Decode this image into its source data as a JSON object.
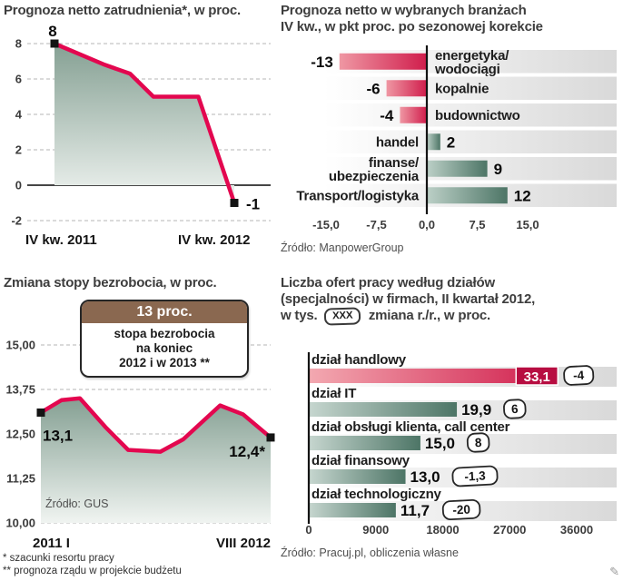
{
  "colors": {
    "line_pink": "#e3074f",
    "area_top": "#85a093",
    "area_bottom": "#f0f4f1",
    "bar_teal": "#4d7566",
    "bar_red": "#d01d4c",
    "value_box": "#b70d41",
    "callout_brown": "#8a6850"
  },
  "footnotes": [
    "* szacunki resortu pracy",
    "** prognoza rządu w projekcie budżetu"
  ],
  "chart_data": [
    {
      "type": "area",
      "title": "Prognoza netto zatrudnienia*, w proc.",
      "points": [
        [
          0,
          8
        ],
        [
          0.28,
          6.8
        ],
        [
          0.42,
          6.3
        ],
        [
          0.55,
          5
        ],
        [
          0.8,
          5
        ],
        [
          1,
          -1
        ]
      ],
      "ylim": [
        -2,
        8
      ],
      "yticks": [
        8,
        6,
        4,
        2,
        0,
        -2
      ],
      "ytick_labels": [
        "8",
        "6",
        "4",
        "2",
        "0",
        "-2"
      ],
      "x_labels": [
        "IV kw. 2011",
        "IV kw. 2012"
      ],
      "point_labels": {
        "start": "8",
        "end": "-1"
      }
    },
    {
      "type": "bar-horizontal-diverging",
      "title_lines": [
        "Prognoza netto w wybranych branżach",
        "IV kw., w pkt proc. po sezonowej korekcie"
      ],
      "rows": [
        {
          "label_lines": [
            "energetyka/",
            "wodociągi"
          ],
          "value": -13,
          "value_label": "-13"
        },
        {
          "label_lines": [
            "kopalnie"
          ],
          "value": -6,
          "value_label": "-6"
        },
        {
          "label_lines": [
            "budownictwo"
          ],
          "value": -4,
          "value_label": "-4"
        },
        {
          "label_lines": [
            "handel"
          ],
          "value": 2,
          "value_label": "2"
        },
        {
          "label_lines": [
            "finanse/",
            "ubezpieczenia"
          ],
          "value": 9,
          "value_label": "9"
        },
        {
          "label_lines": [
            "Transport/logistyka"
          ],
          "value": 12,
          "value_label": "12"
        }
      ],
      "xlim": [
        -15,
        15
      ],
      "xticks": [
        -15,
        -7.5,
        0,
        7.5,
        15
      ],
      "xtick_labels": [
        "-15,0",
        "-7,5",
        "0,0",
        "7,5",
        "15,0"
      ],
      "source": "Źródło: ManpowerGroup"
    },
    {
      "type": "area",
      "title": "Zmiana stopy bezrobocia, w proc.",
      "callout": {
        "header": "13 proc.",
        "body_lines": [
          "stopa bezrobocia",
          "na koniec",
          "2012 i w 2013 **"
        ]
      },
      "points": [
        [
          0,
          13.1
        ],
        [
          0.09,
          13.45
        ],
        [
          0.17,
          13.5
        ],
        [
          0.28,
          12.7
        ],
        [
          0.38,
          12.05
        ],
        [
          0.52,
          12.0
        ],
        [
          0.62,
          12.35
        ],
        [
          0.78,
          13.3
        ],
        [
          0.88,
          13.05
        ],
        [
          1,
          12.4
        ]
      ],
      "ylim": [
        10,
        15
      ],
      "yticks": [
        15,
        13.75,
        12.5,
        11.25,
        10
      ],
      "ytick_labels": [
        "15,00",
        "13,75",
        "12,50",
        "11,25",
        "10,00"
      ],
      "x_labels": [
        "2011 I",
        "VIII 2012"
      ],
      "point_labels": {
        "start": "13,1",
        "end": "12,4*"
      },
      "source": "Źródło: GUS"
    },
    {
      "type": "bar-horizontal",
      "title_lines": [
        "Liczba ofert pracy według działów",
        "(specjalności) w firmach, II kwartał 2012,"
      ],
      "title_tail": {
        "pre": "w tys.",
        "token": "XXX",
        "post": "zmiana r./r., w proc."
      },
      "rows": [
        {
          "label": "dział handlowy",
          "value": 33.1,
          "value_label": "33,1",
          "change": "-4",
          "highlight": true
        },
        {
          "label": "dział IT",
          "value": 19.9,
          "value_label": "19,9",
          "change": "6",
          "highlight": false
        },
        {
          "label": "dział obsługi klienta, call center",
          "value": 15.0,
          "value_label": "15,0",
          "change": "8",
          "highlight": false
        },
        {
          "label": "dział finansowy",
          "value": 13.0,
          "value_label": "13,0",
          "change": "-1,3",
          "highlight": false
        },
        {
          "label": "dział technologiczny",
          "value": 11.7,
          "value_label": "11,7",
          "change": "-20",
          "highlight": false
        }
      ],
      "xlim": [
        0,
        36000
      ],
      "value_scale": 1000,
      "xticks": [
        0,
        9000,
        18000,
        27000,
        36000
      ],
      "xtick_labels": [
        "0",
        "9000",
        "18000",
        "27000",
        "36000"
      ],
      "source": "Źródło: Pracuj.pl, obliczenia własne"
    }
  ]
}
